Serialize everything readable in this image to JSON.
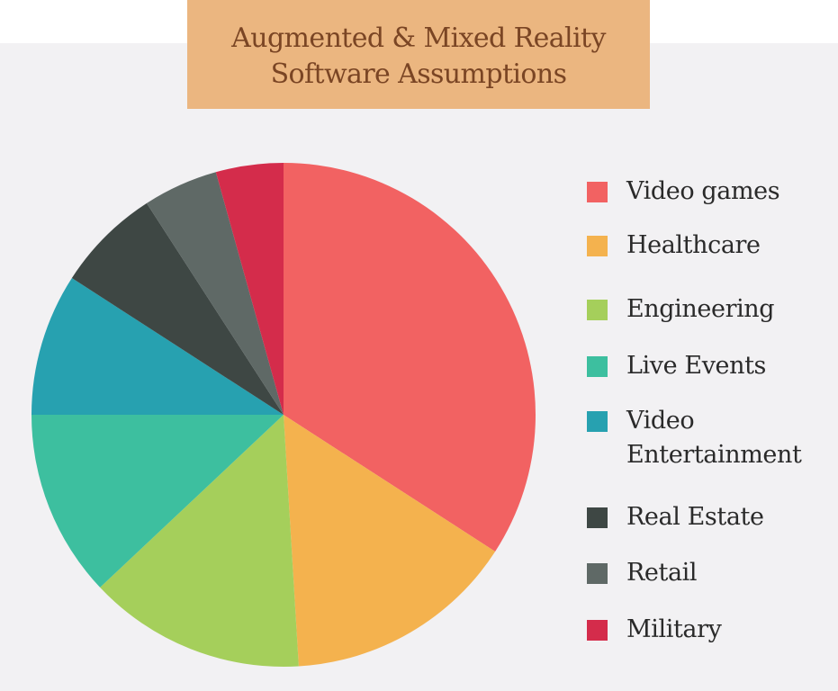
{
  "title": {
    "line1": "Augmented & Mixed Reality",
    "line2": "Software Assumptions"
  },
  "chart_data": {
    "type": "pie",
    "title": "Augmented & Mixed Reality Software Assumptions",
    "legend_position": "right",
    "slices": [
      {
        "label": "Video games",
        "value": 35.5,
        "color": "#f26262"
      },
      {
        "label": "Healthcare",
        "value": 15.5,
        "color": "#f4b24e"
      },
      {
        "label": "Engineering",
        "value": 14.5,
        "color": "#a5cf5b"
      },
      {
        "label": "Live Events",
        "value": 12.5,
        "color": "#3dbf9f"
      },
      {
        "label": "Video Entertainment",
        "value": 9.5,
        "color": "#27a1b0"
      },
      {
        "label": "Real Estate",
        "value": 7.0,
        "color": "#3e4744"
      },
      {
        "label": "Retail",
        "value": 5.0,
        "color": "#5f6966"
      },
      {
        "label": "Military",
        "value": 4.5,
        "color": "#d42c4b"
      }
    ]
  }
}
